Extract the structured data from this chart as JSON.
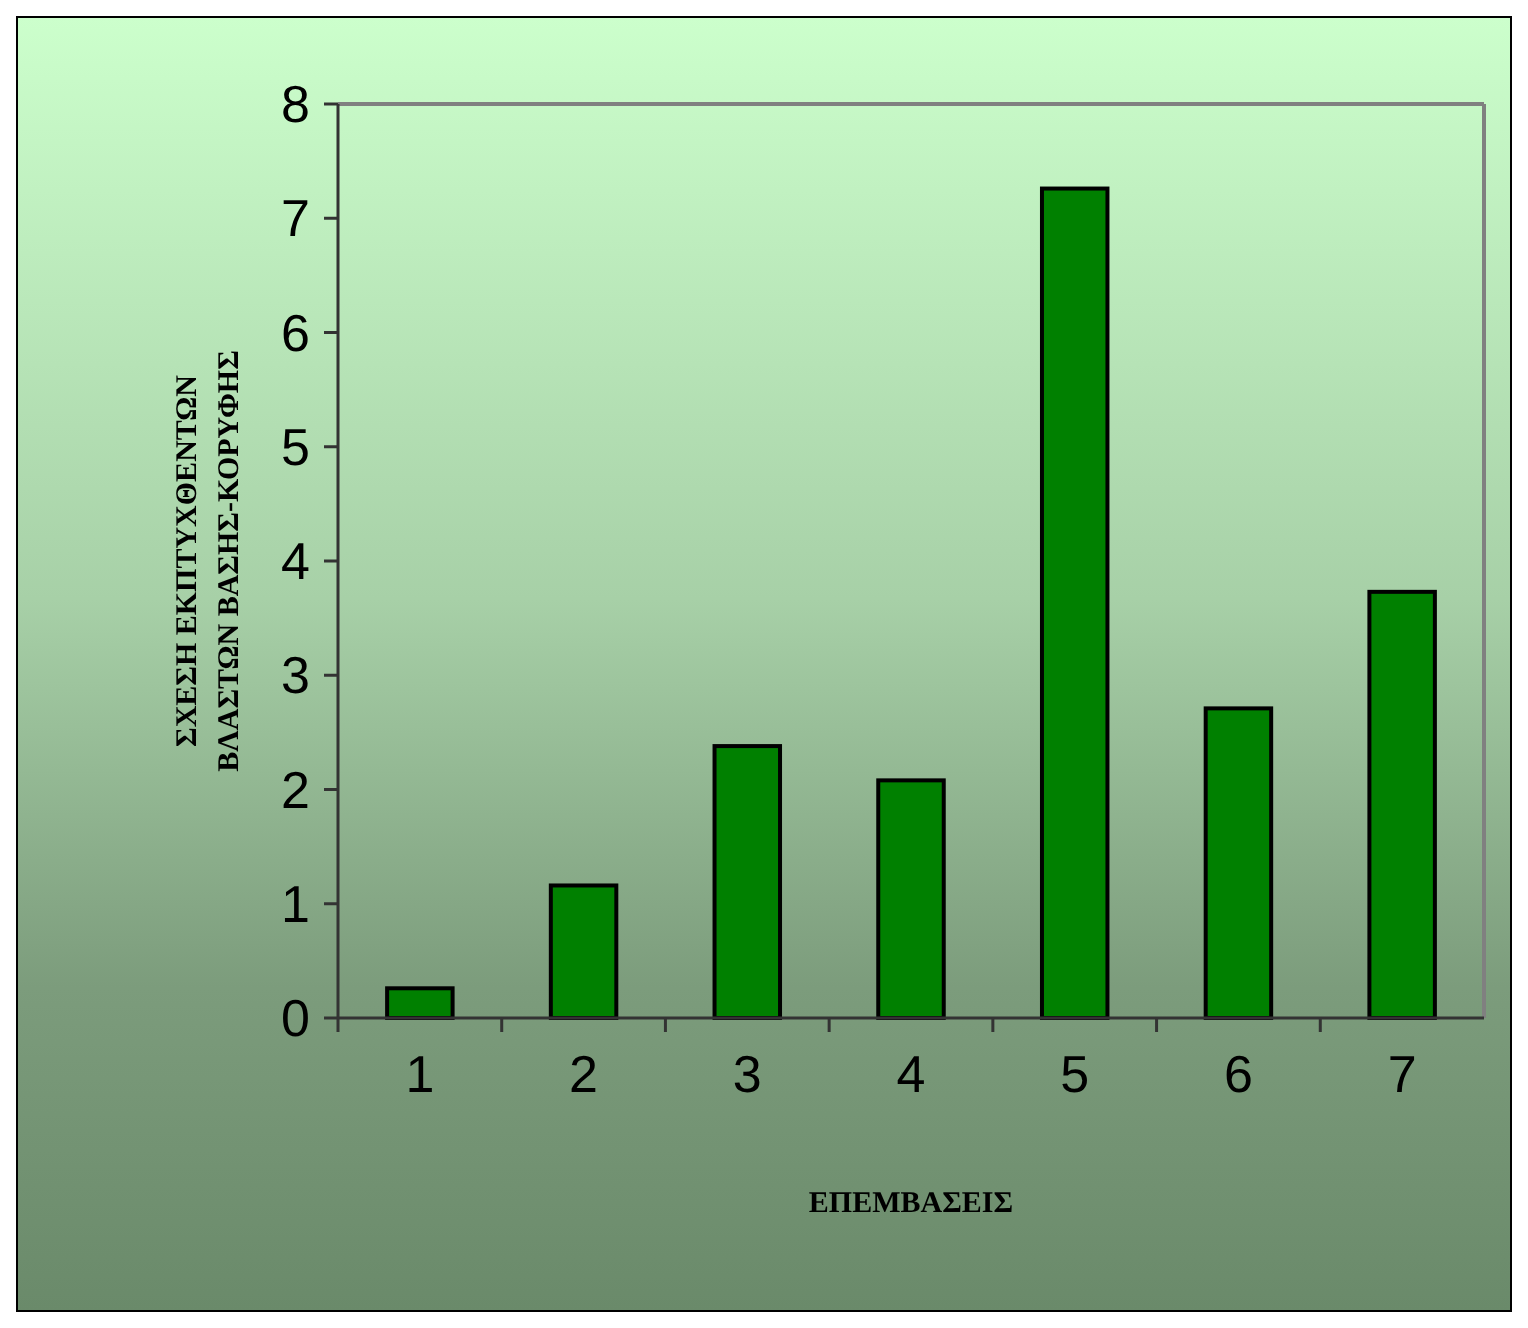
{
  "chart_data": {
    "type": "bar",
    "xlabel": "ΕΠΕΜΒΑΣΕΙΣ",
    "ylabel": "ΣΧΕΣΗ ΕΚΠΤΥΧΘΕΝΤΩΝ\nΒΛΑΣΤΩΝ ΒΑΣΗΣ-ΚΟΡΥΦΗΣ",
    "categories": [
      "1",
      "2",
      "3",
      "4",
      "5",
      "6",
      "7"
    ],
    "values": [
      0.26,
      1.16,
      2.38,
      2.08,
      7.26,
      2.71,
      3.73
    ],
    "color": "#008000",
    "ylim": [
      0,
      8
    ],
    "yticks": [
      0,
      1,
      2,
      3,
      4,
      5,
      6,
      7,
      8
    ]
  }
}
